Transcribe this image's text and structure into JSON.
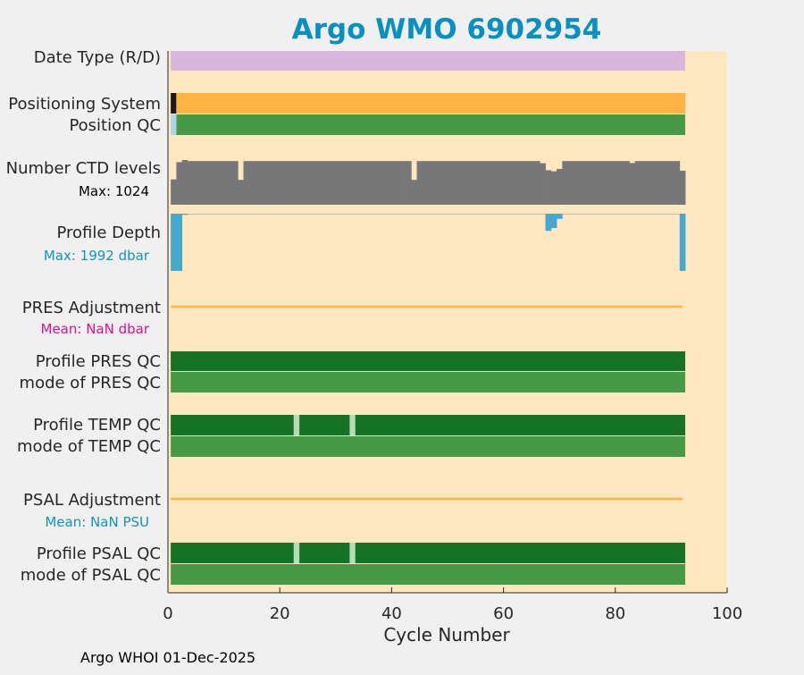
{
  "chart_data": {
    "type": "bar",
    "title": "Argo WMO 6902954",
    "xlabel": "Cycle Number",
    "xlim": [
      0,
      100
    ],
    "xticks": [
      0,
      20,
      40,
      60,
      80,
      100
    ],
    "grid": false,
    "footer": "Argo WHOI 01-Dec-2025",
    "rows": [
      {
        "key": "date_type",
        "label": "Date Type (R/D)"
      },
      {
        "key": "positioning_system",
        "label": "Positioning System"
      },
      {
        "key": "position_qc",
        "label": "Position QC"
      },
      {
        "key": "ctd_levels",
        "label": "Number CTD levels",
        "sublabel": "Max: 1024"
      },
      {
        "key": "profile_depth",
        "label": "Profile Depth",
        "sublabel": "Max: 1992 dbar"
      },
      {
        "key": "pres_adjustment",
        "label": "PRES Adjustment",
        "sublabel": "Mean:  NaN dbar"
      },
      {
        "key": "profile_pres_qc",
        "label": "Profile PRES QC"
      },
      {
        "key": "mode_pres_qc",
        "label": "mode of PRES QC"
      },
      {
        "key": "profile_temp_qc",
        "label": "Profile TEMP QC"
      },
      {
        "key": "mode_temp_qc",
        "label": "mode of TEMP QC"
      },
      {
        "key": "psal_adjustment",
        "label": "PSAL Adjustment",
        "sublabel": "Mean:  NaN PSU"
      },
      {
        "key": "profile_psal_qc",
        "label": "Profile PSAL QC"
      },
      {
        "key": "mode_psal_qc",
        "label": "mode of PSAL QC"
      }
    ],
    "series": {
      "date_type": {
        "segments": [
          [
            0.5,
            92.5,
            "#d8b7dd"
          ]
        ]
      },
      "positioning_system": {
        "segments": [
          [
            0.5,
            1.5,
            "#1a1a1a"
          ],
          [
            1.5,
            92.5,
            "#ffb340"
          ]
        ]
      },
      "position_qc": {
        "segments": [
          [
            0.5,
            1.5,
            "#aed4f0"
          ],
          [
            1.5,
            92.5,
            "#469a46"
          ]
        ]
      },
      "profile_pres_qc": {
        "segments": [
          [
            0.5,
            92.5,
            "#157226"
          ]
        ]
      },
      "mode_pres_qc": {
        "segments": [
          [
            0.5,
            92.5,
            "#469a46"
          ]
        ]
      },
      "profile_temp_qc": {
        "segments": [
          [
            0.5,
            22.5,
            "#157226"
          ],
          [
            22.5,
            23.5,
            "#b5dcb5"
          ],
          [
            23.5,
            32.5,
            "#157226"
          ],
          [
            32.5,
            33.5,
            "#b5dcb5"
          ],
          [
            33.5,
            92.5,
            "#157226"
          ]
        ]
      },
      "mode_temp_qc": {
        "segments": [
          [
            0.5,
            92.5,
            "#469a46"
          ]
        ]
      },
      "profile_psal_qc": {
        "segments": [
          [
            0.5,
            22.5,
            "#157226"
          ],
          [
            22.5,
            23.5,
            "#b5dcb5"
          ],
          [
            23.5,
            32.5,
            "#157226"
          ],
          [
            32.5,
            33.5,
            "#b5dcb5"
          ],
          [
            33.5,
            92.5,
            "#157226"
          ]
        ]
      },
      "mode_psal_qc": {
        "segments": [
          [
            0.5,
            92.5,
            "#469a46"
          ]
        ]
      },
      "ctd_levels": {
        "max": 1024,
        "color": "#777777",
        "values": [
          580,
          975,
          1024,
          1000,
          1000,
          1000,
          1000,
          1000,
          1000,
          1000,
          1000,
          1000,
          570,
          1000,
          1000,
          1000,
          1000,
          1000,
          1000,
          1000,
          1000,
          1000,
          1000,
          1000,
          1000,
          1000,
          1000,
          1000,
          1000,
          1000,
          1000,
          1000,
          1000,
          1000,
          1000,
          1000,
          1000,
          1000,
          1000,
          1000,
          1000,
          1000,
          1000,
          570,
          1000,
          1000,
          1000,
          1000,
          1000,
          1000,
          1000,
          1000,
          1000,
          1000,
          1000,
          1000,
          1000,
          1000,
          1000,
          1000,
          1000,
          1000,
          1000,
          1000,
          1000,
          1000,
          950,
          790,
          765,
          820,
          1000,
          1000,
          1000,
          1000,
          1000,
          1000,
          1000,
          1000,
          1000,
          1000,
          1000,
          1000,
          955,
          1000,
          1000,
          1000,
          1000,
          1000,
          1000,
          1000,
          1000,
          780
        ]
      },
      "profile_depth": {
        "max": 1992,
        "color": "#44a9cf",
        "values": [
          1992,
          1992,
          40,
          15,
          15,
          15,
          15,
          15,
          15,
          15,
          15,
          15,
          15,
          15,
          15,
          15,
          15,
          15,
          15,
          15,
          15,
          15,
          15,
          15,
          15,
          15,
          15,
          15,
          15,
          15,
          15,
          15,
          15,
          15,
          15,
          15,
          15,
          15,
          15,
          15,
          15,
          15,
          15,
          15,
          15,
          15,
          15,
          15,
          15,
          15,
          15,
          15,
          15,
          15,
          15,
          15,
          15,
          15,
          15,
          15,
          15,
          15,
          15,
          15,
          15,
          15,
          15,
          600,
          500,
          180,
          15,
          15,
          15,
          15,
          15,
          15,
          15,
          15,
          15,
          15,
          15,
          15,
          15,
          15,
          15,
          15,
          15,
          15,
          15,
          15,
          15,
          1992
        ]
      },
      "pres_adjustment": {
        "line": [
          0.5,
          92
        ],
        "color": "#ffb340"
      },
      "psal_adjustment": {
        "line": [
          0.5,
          92
        ],
        "color": "#ffb340"
      }
    },
    "colors": {
      "plot_bg": "#fde7c1",
      "title": "#0a8fc2",
      "sublabel_ctd": "#000000",
      "sublabel_depth": "#1592c0",
      "sublabel_pres": "#e0118c",
      "sublabel_psal": "#1592c0"
    }
  }
}
